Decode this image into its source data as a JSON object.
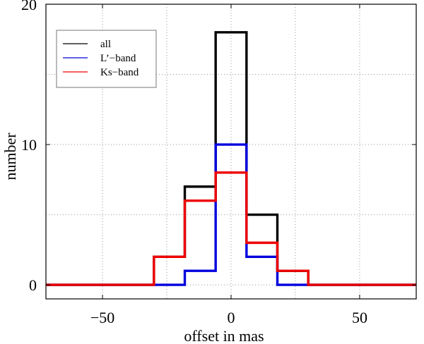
{
  "chart_data": {
    "type": "histogram",
    "xlabel": "offset in mas",
    "ylabel": "number",
    "xlim": [
      -72,
      72
    ],
    "ylim": [
      -1,
      20
    ],
    "xticks": [
      -50,
      0,
      50
    ],
    "yticks": [
      0,
      10,
      20
    ],
    "grid": true,
    "legend_position": "top-left",
    "bin_edges": [
      -72,
      -60,
      -48,
      -36,
      -30,
      -18,
      -6,
      6,
      18,
      30,
      42,
      54,
      66,
      72
    ],
    "series": [
      {
        "name": "all",
        "color": "#000000",
        "values": [
          0,
          0,
          0,
          0,
          2,
          7,
          18,
          5,
          1,
          0,
          0,
          0,
          0
        ]
      },
      {
        "name": "L’−band",
        "color": "#0000dd",
        "values": [
          0,
          0,
          0,
          0,
          0,
          1,
          10,
          2,
          0,
          0,
          0,
          0,
          0
        ]
      },
      {
        "name": "Ks−band",
        "color": "#ee0000",
        "values": [
          0,
          0,
          0,
          0,
          2,
          6,
          8,
          3,
          1,
          0,
          0,
          0,
          0
        ]
      }
    ]
  }
}
